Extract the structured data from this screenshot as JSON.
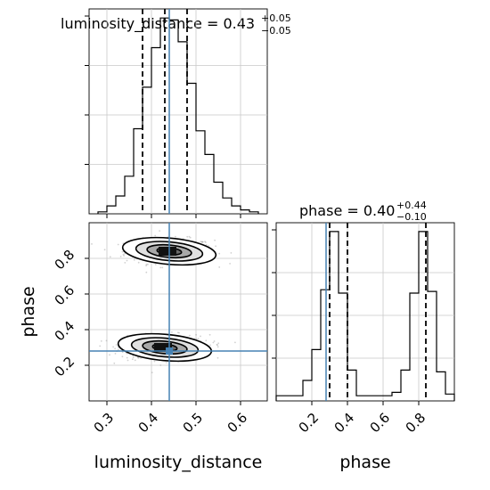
{
  "chart_data": [
    {
      "type": "histogram",
      "panel": "luminosity_distance marginal",
      "title": {
        "label": "luminosity_distance = 0.43",
        "sup": "+0.05",
        "sub": "−0.05"
      },
      "x": "luminosity_distance",
      "xlim": [
        0.26,
        0.66
      ],
      "ylim": [
        0,
        1.0
      ],
      "bin_edges": [
        0.28,
        0.3,
        0.32,
        0.34,
        0.36,
        0.38,
        0.4,
        0.42,
        0.44,
        0.46,
        0.48,
        0.5,
        0.52,
        0.54,
        0.56,
        0.58,
        0.6,
        0.62,
        0.64
      ],
      "counts": [
        0.01,
        0.04,
        0.09,
        0.19,
        0.43,
        0.64,
        0.84,
        0.99,
        0.98,
        0.87,
        0.66,
        0.42,
        0.3,
        0.16,
        0.08,
        0.04,
        0.02,
        0.01
      ],
      "quantile_lines": [
        0.38,
        0.43,
        0.48
      ],
      "grid": true
    },
    {
      "type": "histogram",
      "panel": "phase marginal",
      "title": {
        "label": "phase = 0.40",
        "sup": "+0.44",
        "sub": "−0.10"
      },
      "x": "phase",
      "xlabel": "phase",
      "xlim": [
        0.0,
        1.0
      ],
      "xticks": [
        "0.2",
        "0.4",
        "0.6",
        "0.8"
      ],
      "ylim": [
        0,
        1.0
      ],
      "bin_edges": [
        0.0,
        0.05,
        0.1,
        0.15,
        0.2,
        0.25,
        0.3,
        0.35,
        0.4,
        0.45,
        0.5,
        0.55,
        0.6,
        0.65,
        0.7,
        0.75,
        0.8,
        0.85,
        0.9,
        0.95,
        1.0
      ],
      "counts": [
        0.03,
        0.03,
        0.03,
        0.12,
        0.3,
        0.65,
        0.99,
        0.63,
        0.18,
        0.03,
        0.03,
        0.03,
        0.03,
        0.05,
        0.18,
        0.63,
        0.99,
        0.64,
        0.17,
        0.04
      ],
      "quantile_lines": [
        0.3,
        0.4,
        0.84
      ],
      "truth_line": 0.28,
      "grid": true
    },
    {
      "type": "scatter",
      "panel": "2D density",
      "x": "luminosity_distance",
      "y": "phase",
      "xlabel": "luminosity_distance",
      "ylabel": "phase",
      "xlim": [
        0.26,
        0.66
      ],
      "ylim": [
        0.0,
        1.0
      ],
      "xticks": [
        "0.3",
        "0.4",
        "0.5",
        "0.6"
      ],
      "yticks": [
        "0.2",
        "0.4",
        "0.6",
        "0.8"
      ],
      "clusters": [
        {
          "center": [
            0.44,
            0.84
          ],
          "spread": [
            0.05,
            0.035
          ]
        },
        {
          "center": [
            0.43,
            0.3
          ],
          "spread": [
            0.05,
            0.035
          ]
        }
      ],
      "truth": [
        0.44,
        0.28
      ],
      "grid": true
    }
  ]
}
